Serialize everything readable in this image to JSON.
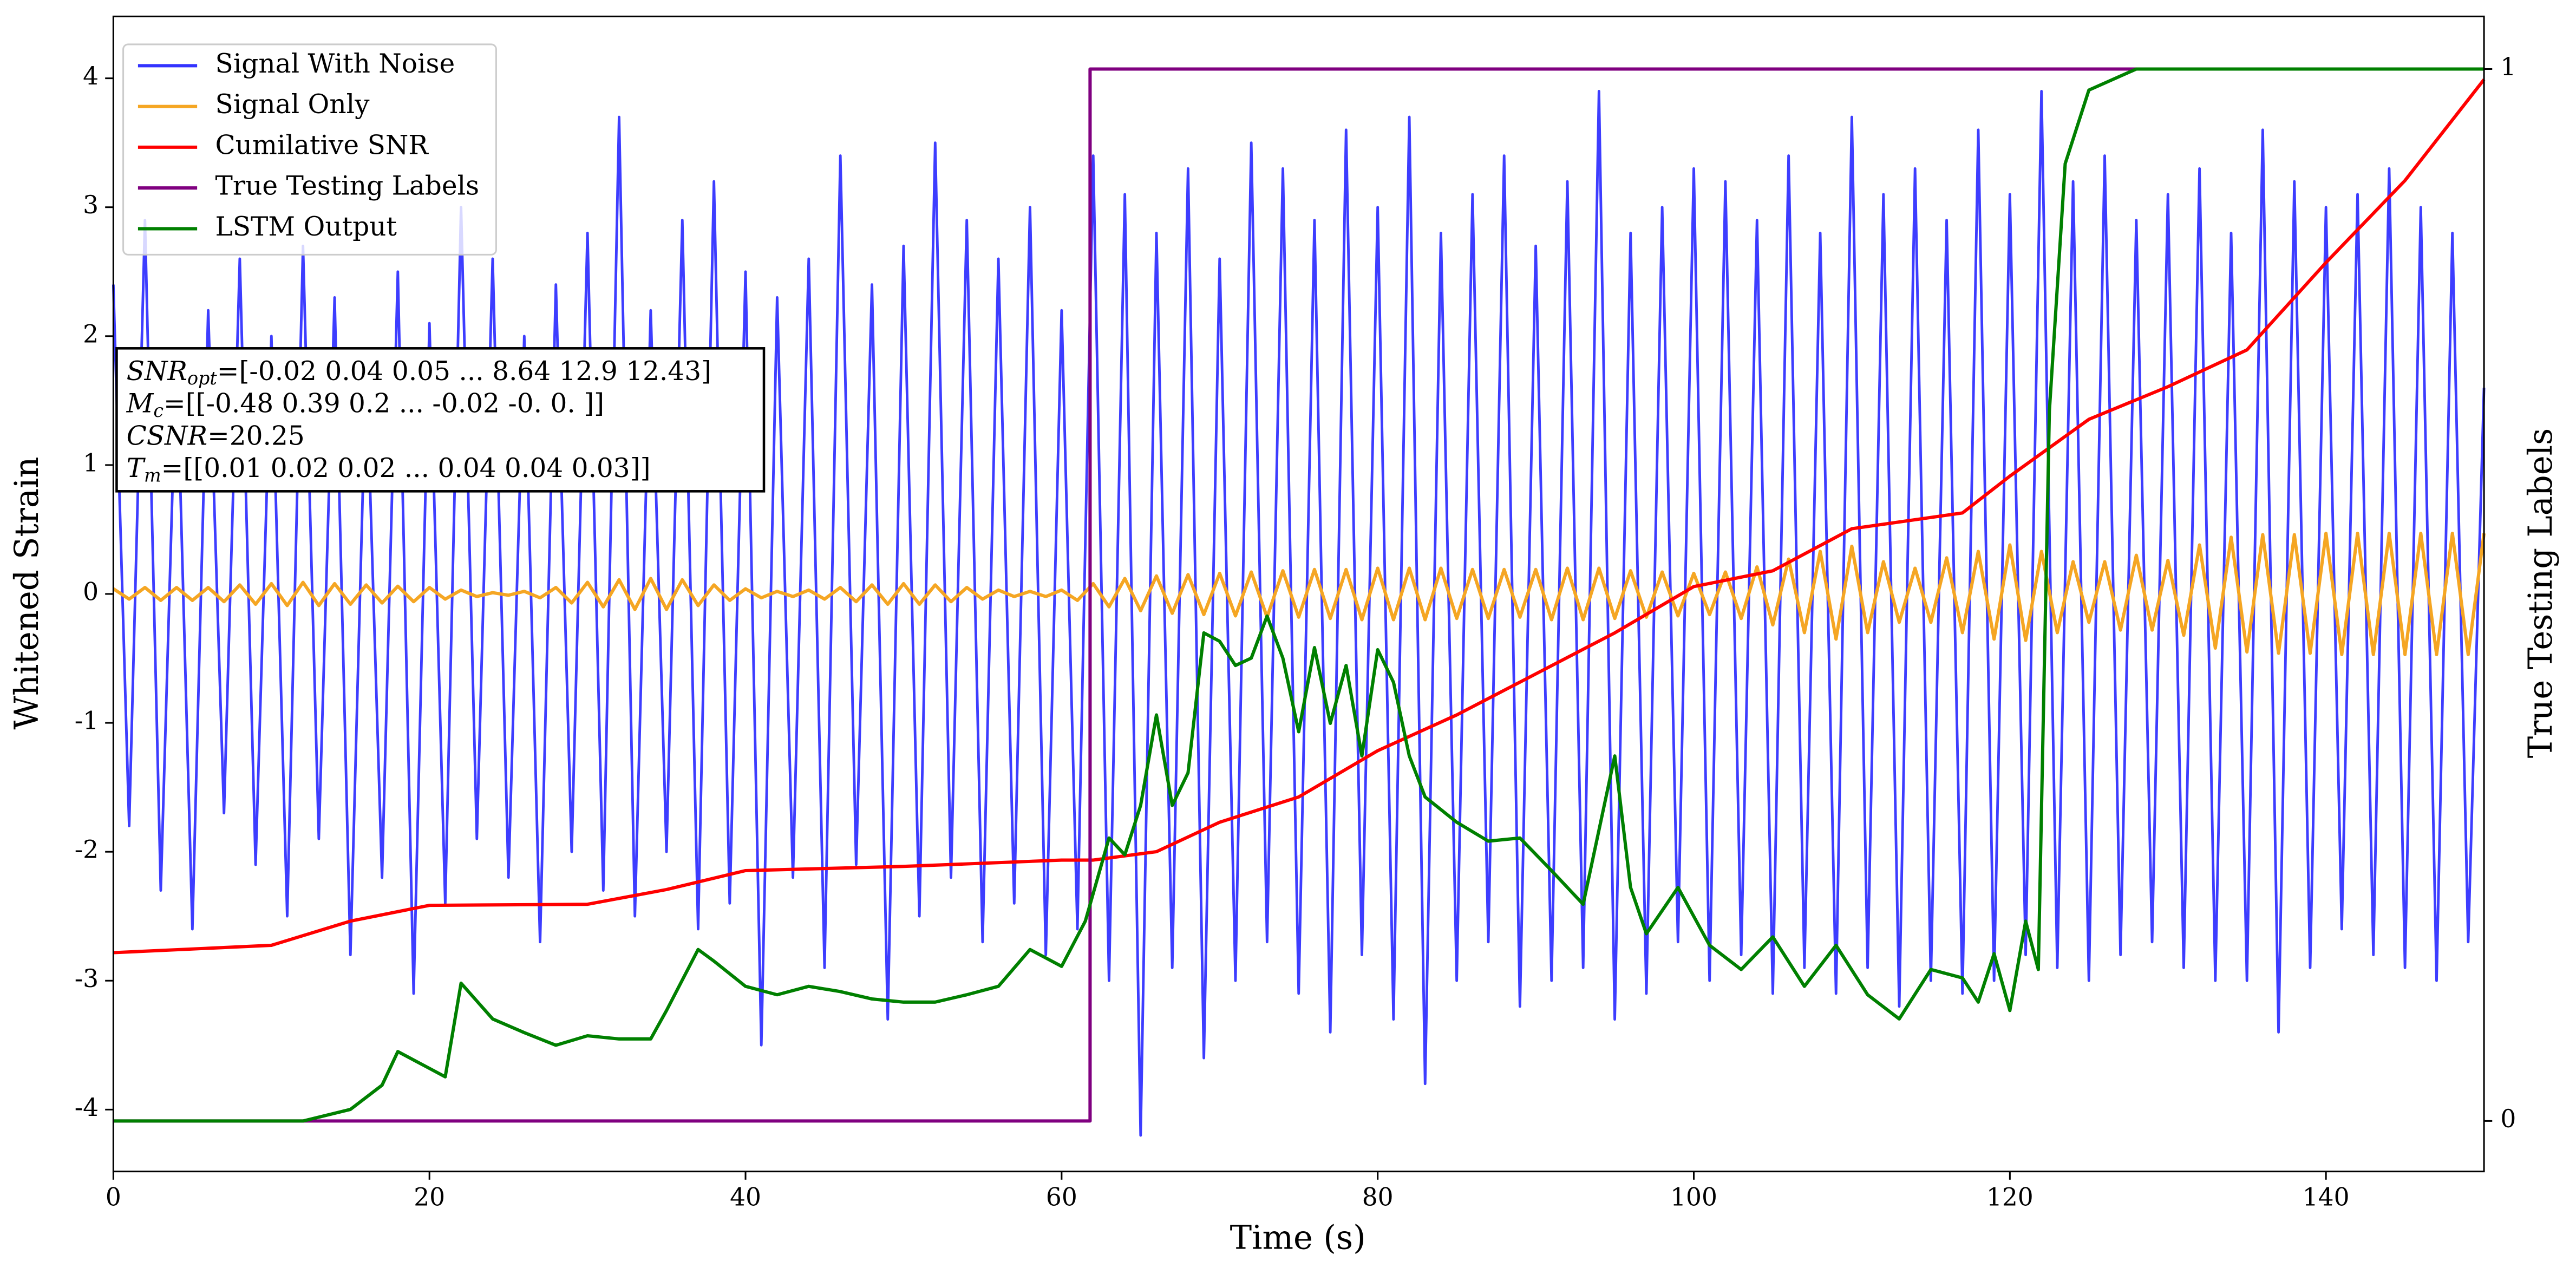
{
  "chart_data": {
    "type": "line",
    "xlabel": "Time (s)",
    "ylabel": "Whitened Strain",
    "y2label": "True Testing Labels",
    "xlim": [
      0,
      150
    ],
    "xticks": [
      0,
      20,
      40,
      60,
      80,
      100,
      120,
      140
    ],
    "ylim": [
      -4.48,
      4.48
    ],
    "yticks": [
      -4,
      -3,
      -2,
      -1,
      0,
      1,
      2,
      3,
      4
    ],
    "y2lim": [
      -0.048,
      1.05
    ],
    "y2ticks": [
      0,
      1
    ],
    "legend": "upper left",
    "annotation": [
      {
        "symbol": "SNR",
        "sub": "opt",
        "text": "=[-0.02  0.04  0.05 ...  8.64 12.9  12.43]"
      },
      {
        "symbol": "M",
        "sub": "c",
        "text": "=[[-0.48  0.39  0.2  ... -0.02 -0.    0.  ]]"
      },
      {
        "symbol": "CSNR",
        "text": "=20.25"
      },
      {
        "symbol": "T",
        "sub": "m",
        "text": "=[[0.01 0.02 0.02 ... 0.04 0.04 0.03]]"
      }
    ],
    "series": [
      {
        "name": "Signal With Noise",
        "color": "#3333ff",
        "x": [
          0,
          1,
          2,
          3,
          4,
          5,
          6,
          7,
          8,
          9,
          10,
          11,
          12,
          13,
          14,
          15,
          16,
          17,
          18,
          19,
          20,
          21,
          22,
          23,
          24,
          25,
          26,
          27,
          28,
          29,
          30,
          31,
          32,
          33,
          34,
          35,
          36,
          37,
          38,
          39,
          40,
          41,
          42,
          43,
          44,
          45,
          46,
          47,
          48,
          49,
          50,
          51,
          52,
          53,
          54,
          55,
          56,
          57,
          58,
          59,
          60,
          61,
          62,
          63,
          64,
          65,
          66,
          67,
          68,
          69,
          70,
          71,
          72,
          73,
          74,
          75,
          76,
          77,
          78,
          79,
          80,
          81,
          82,
          83,
          84,
          85,
          86,
          87,
          88,
          89,
          90,
          91,
          92,
          93,
          94,
          95,
          96,
          97,
          98,
          99,
          100,
          101,
          102,
          103,
          104,
          105,
          106,
          107,
          108,
          109,
          110,
          111,
          112,
          113,
          114,
          115,
          116,
          117,
          118,
          119,
          120,
          121,
          122,
          123,
          124,
          125,
          126,
          127,
          128,
          129,
          130,
          131,
          132,
          133,
          134,
          135,
          136,
          137,
          138,
          139,
          140,
          141,
          142,
          143,
          144,
          145,
          146,
          147,
          148,
          149,
          150
        ],
        "values": [
          2.4,
          -1.8,
          2.9,
          -2.3,
          1.9,
          -2.6,
          2.2,
          -1.7,
          2.6,
          -2.1,
          2.0,
          -2.5,
          2.7,
          -1.9,
          2.3,
          -2.8,
          1.8,
          -2.2,
          2.5,
          -3.1,
          2.1,
          -2.4,
          3.0,
          -1.9,
          2.6,
          -2.2,
          2.0,
          -2.7,
          2.4,
          -2.0,
          2.8,
          -2.3,
          3.7,
          -2.5,
          2.2,
          -2.0,
          2.9,
          -2.6,
          3.2,
          -2.4,
          2.5,
          -3.5,
          2.3,
          -2.2,
          2.6,
          -2.9,
          3.4,
          -2.1,
          2.4,
          -3.3,
          2.7,
          -2.5,
          3.5,
          -2.2,
          2.9,
          -2.7,
          2.6,
          -2.4,
          3.0,
          -2.8,
          2.2,
          -2.6,
          3.4,
          -3.0,
          3.1,
          -4.2,
          2.8,
          -2.9,
          3.3,
          -3.6,
          2.6,
          -3.0,
          3.5,
          -2.7,
          3.3,
          -3.1,
          2.9,
          -3.4,
          3.6,
          -2.8,
          3.0,
          -3.3,
          3.7,
          -3.8,
          2.8,
          -3.0,
          3.1,
          -2.7,
          3.4,
          -3.2,
          2.7,
          -3.0,
          3.2,
          -2.9,
          3.9,
          -3.3,
          2.8,
          -3.1,
          3.0,
          -2.7,
          3.3,
          -3.0,
          3.2,
          -2.8,
          2.9,
          -3.1,
          3.4,
          -2.9,
          2.8,
          -3.1,
          3.7,
          -2.9,
          3.1,
          -3.2,
          3.3,
          -3.0,
          2.9,
          -3.1,
          3.6,
          -3.0,
          3.1,
          -2.8,
          3.9,
          -2.9,
          3.2,
          -3.0,
          3.4,
          -2.8,
          2.9,
          -2.7,
          3.1,
          -2.9,
          3.3,
          -3.0,
          2.8,
          -3.0,
          3.6,
          -3.4,
          3.2,
          -2.9,
          3.0,
          -2.6,
          3.1,
          -2.8,
          3.3,
          -2.9,
          3.0,
          -3.0,
          2.8,
          -2.7,
          1.6
        ]
      },
      {
        "name": "Signal Only",
        "color": "#f5a623",
        "x": [
          0,
          1,
          2,
          3,
          4,
          5,
          6,
          7,
          8,
          9,
          10,
          11,
          12,
          13,
          14,
          15,
          16,
          17,
          18,
          19,
          20,
          21,
          22,
          23,
          24,
          25,
          26,
          27,
          28,
          29,
          30,
          31,
          32,
          33,
          34,
          35,
          36,
          37,
          38,
          39,
          40,
          41,
          42,
          43,
          44,
          45,
          46,
          47,
          48,
          49,
          50,
          51,
          52,
          53,
          54,
          55,
          56,
          57,
          58,
          59,
          60,
          61,
          62,
          63,
          64,
          65,
          66,
          67,
          68,
          69,
          70,
          71,
          72,
          73,
          74,
          75,
          76,
          77,
          78,
          79,
          80,
          81,
          82,
          83,
          84,
          85,
          86,
          87,
          88,
          89,
          90,
          91,
          92,
          93,
          94,
          95,
          96,
          97,
          98,
          99,
          100,
          101,
          102,
          103,
          104,
          105,
          106,
          107,
          108,
          109,
          110,
          111,
          112,
          113,
          114,
          115,
          116,
          117,
          118,
          119,
          120,
          121,
          122,
          123,
          124,
          125,
          126,
          127,
          128,
          129,
          130,
          131,
          132,
          133,
          134,
          135,
          136,
          137,
          138,
          139,
          140,
          141,
          142,
          143,
          144,
          145,
          146,
          147,
          148,
          149,
          150
        ],
        "values": [
          0.04,
          -0.04,
          0.05,
          -0.05,
          0.05,
          -0.05,
          0.05,
          -0.06,
          0.07,
          -0.08,
          0.08,
          -0.09,
          0.09,
          -0.09,
          0.08,
          -0.08,
          0.07,
          -0.07,
          0.06,
          -0.06,
          0.05,
          -0.04,
          0.03,
          -0.02,
          0.01,
          -0.01,
          0.02,
          -0.03,
          0.05,
          -0.07,
          0.09,
          -0.1,
          0.11,
          -0.12,
          0.12,
          -0.12,
          0.11,
          -0.09,
          0.07,
          -0.05,
          0.04,
          -0.03,
          0.02,
          -0.02,
          0.03,
          -0.04,
          0.05,
          -0.06,
          0.07,
          -0.08,
          0.08,
          -0.08,
          0.07,
          -0.06,
          0.05,
          -0.04,
          0.03,
          -0.02,
          0.02,
          -0.02,
          0.03,
          -0.05,
          0.08,
          -0.1,
          0.12,
          -0.13,
          0.14,
          -0.15,
          0.15,
          -0.16,
          0.16,
          -0.17,
          0.17,
          -0.18,
          0.18,
          -0.18,
          0.19,
          -0.19,
          0.19,
          -0.2,
          0.2,
          -0.2,
          0.2,
          -0.2,
          0.2,
          -0.19,
          0.19,
          -0.19,
          0.19,
          -0.18,
          0.19,
          -0.2,
          0.2,
          -0.2,
          0.2,
          -0.19,
          0.18,
          -0.18,
          0.17,
          -0.17,
          0.16,
          -0.16,
          0.17,
          -0.19,
          0.21,
          -0.24,
          0.27,
          -0.3,
          0.33,
          -0.35,
          0.37,
          -0.3,
          0.25,
          -0.22,
          0.2,
          -0.22,
          0.28,
          -0.3,
          0.33,
          -0.35,
          0.38,
          -0.36,
          0.33,
          -0.3,
          0.25,
          -0.22,
          0.25,
          -0.28,
          0.3,
          -0.28,
          0.26,
          -0.32,
          0.38,
          -0.42,
          0.44,
          -0.45,
          0.46,
          -0.46,
          0.46,
          -0.46,
          0.47,
          -0.47,
          0.47,
          -0.47,
          0.47,
          -0.47,
          0.47,
          -0.47,
          0.47,
          -0.47,
          0.47
        ]
      },
      {
        "name": "Cumilative SNR",
        "color": "#ff0000",
        "axis": "y2",
        "x": [
          0,
          10,
          15,
          20,
          30,
          35,
          40,
          50,
          60,
          62,
          66,
          70,
          75,
          80,
          85,
          90,
          95,
          100,
          105,
          110,
          117,
          120,
          125,
          130,
          135,
          140,
          145,
          150
        ],
        "values": [
          0.16,
          0.167,
          0.19,
          0.205,
          0.206,
          0.22,
          0.238,
          0.242,
          0.248,
          0.248,
          0.256,
          0.284,
          0.308,
          0.352,
          0.386,
          0.425,
          0.464,
          0.508,
          0.523,
          0.563,
          0.578,
          0.613,
          0.667,
          0.698,
          0.733,
          0.816,
          0.894,
          0.99
        ]
      },
      {
        "name": "True Testing Labels",
        "color": "#800080",
        "axis": "y2",
        "x": [
          0,
          61.8,
          61.8,
          150
        ],
        "values": [
          0,
          0,
          1,
          1
        ]
      },
      {
        "name": "LSTM Output",
        "color": "#008000",
        "axis": "y2",
        "x": [
          0,
          12,
          15,
          17,
          18,
          20,
          21,
          22,
          24,
          26,
          28,
          30,
          32,
          34,
          35,
          37,
          38,
          40,
          42,
          44,
          46,
          48,
          50,
          52,
          54,
          56,
          58,
          60,
          61.5,
          63,
          64,
          65,
          66,
          67,
          68,
          69,
          70,
          71,
          72,
          73,
          74,
          75,
          76,
          77,
          78,
          79,
          80,
          81,
          82,
          83,
          85,
          87,
          89,
          91,
          93,
          95,
          96,
          97,
          99,
          101,
          103,
          105,
          107,
          109,
          111,
          113,
          115,
          117,
          118,
          119,
          120,
          121,
          121.8,
          122.5,
          123.5,
          125,
          128,
          150
        ],
        "values": [
          0,
          0,
          0.011,
          0.034,
          0.066,
          0.05,
          0.042,
          0.131,
          0.097,
          0.084,
          0.072,
          0.081,
          0.078,
          0.078,
          0.105,
          0.163,
          0.152,
          0.128,
          0.12,
          0.128,
          0.123,
          0.116,
          0.113,
          0.113,
          0.12,
          0.128,
          0.163,
          0.147,
          0.19,
          0.269,
          0.253,
          0.3,
          0.386,
          0.3,
          0.331,
          0.464,
          0.456,
          0.433,
          0.44,
          0.48,
          0.44,
          0.37,
          0.45,
          0.378,
          0.433,
          0.347,
          0.448,
          0.417,
          0.347,
          0.308,
          0.284,
          0.266,
          0.269,
          0.238,
          0.206,
          0.347,
          0.222,
          0.178,
          0.222,
          0.167,
          0.144,
          0.175,
          0.128,
          0.167,
          0.12,
          0.097,
          0.144,
          0.136,
          0.113,
          0.159,
          0.105,
          0.19,
          0.144,
          0.675,
          0.91,
          0.98,
          1,
          1
        ]
      }
    ]
  }
}
